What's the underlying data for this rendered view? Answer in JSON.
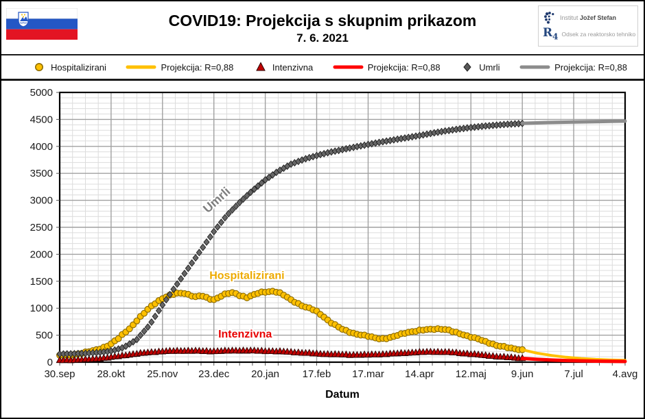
{
  "header": {
    "title": "COVID19: Projekcija s skupnim prikazom",
    "date": "7. 6. 2021",
    "institute_light": "Institut",
    "institute_bold": "Jožef Stefan",
    "r_logo": "R",
    "r_logo_sub": "4",
    "department": "Odsek za reaktorsko tehniko"
  },
  "legend": {
    "items": [
      {
        "swatch": "circle",
        "color": "#FFC000",
        "edge": "#8F6E00",
        "label": "Hospitalizirani"
      },
      {
        "swatch": "line",
        "color": "#FFC000",
        "edge": "#FFC000",
        "label": "Projekcija: R=0,88"
      },
      {
        "swatch": "triangle",
        "color": "#C00000",
        "edge": "#2b0000",
        "label": "Intenzivna"
      },
      {
        "swatch": "line",
        "color": "#FF0000",
        "edge": "#FF0000",
        "label": "Projekcija: R=0,88"
      },
      {
        "swatch": "diamond",
        "color": "#595959",
        "edge": "#1f1f1f",
        "label": "Umrli"
      },
      {
        "swatch": "line",
        "color": "#8C8C8C",
        "edge": "#8C8C8C",
        "label": "Projekcija: R=0,88"
      }
    ]
  },
  "chart_data": {
    "type": "line",
    "title": "COVID19: Projekcija s skupnim prikazom",
    "subtitle": "7. 6. 2021",
    "xlabel": "Datum",
    "ylabel": "",
    "ylim": [
      0,
      5000
    ],
    "y_major": 500,
    "y_minor": 100,
    "x_total_days": 308,
    "x_minor_days": 7,
    "x_major_days": 28,
    "grid": true,
    "legend_position": "top",
    "x_ticks": [
      {
        "label": "30.sep",
        "day": 0
      },
      {
        "label": "28.okt",
        "day": 28
      },
      {
        "label": "25.nov",
        "day": 56
      },
      {
        "label": "23.dec",
        "day": 84
      },
      {
        "label": "20.jan",
        "day": 112
      },
      {
        "label": "17.feb",
        "day": 140
      },
      {
        "label": "17.mar",
        "day": 168
      },
      {
        "label": "14.apr",
        "day": 196
      },
      {
        "label": "12.maj",
        "day": 224
      },
      {
        "label": "9.jun",
        "day": 252
      },
      {
        "label": "7.jul",
        "day": 280
      },
      {
        "label": "4.avg",
        "day": 308
      }
    ],
    "series": [
      {
        "name": "Hospitalizirani",
        "style": "markers",
        "marker": "circle",
        "color": "#FFC000",
        "edge": "#8F6E00",
        "jitter": 12,
        "points": [
          [
            0,
            125
          ],
          [
            4,
            132
          ],
          [
            7,
            140
          ],
          [
            11,
            158
          ],
          [
            14,
            178
          ],
          [
            18,
            212
          ],
          [
            21,
            242
          ],
          [
            25,
            285
          ],
          [
            28,
            335
          ],
          [
            32,
            440
          ],
          [
            35,
            540
          ],
          [
            39,
            650
          ],
          [
            42,
            770
          ],
          [
            46,
            905
          ],
          [
            49,
            1015
          ],
          [
            53,
            1120
          ],
          [
            56,
            1180
          ],
          [
            60,
            1235
          ],
          [
            63,
            1270
          ],
          [
            67,
            1290
          ],
          [
            70,
            1255
          ],
          [
            74,
            1205
          ],
          [
            77,
            1235
          ],
          [
            81,
            1185
          ],
          [
            84,
            1160
          ],
          [
            88,
            1225
          ],
          [
            91,
            1270
          ],
          [
            95,
            1290
          ],
          [
            98,
            1240
          ],
          [
            102,
            1200
          ],
          [
            105,
            1235
          ],
          [
            109,
            1290
          ],
          [
            112,
            1305
          ],
          [
            116,
            1315
          ],
          [
            119,
            1295
          ],
          [
            123,
            1225
          ],
          [
            126,
            1155
          ],
          [
            130,
            1085
          ],
          [
            133,
            1030
          ],
          [
            137,
            988
          ],
          [
            140,
            940
          ],
          [
            144,
            840
          ],
          [
            147,
            750
          ],
          [
            151,
            668
          ],
          [
            154,
            608
          ],
          [
            158,
            560
          ],
          [
            161,
            528
          ],
          [
            165,
            498
          ],
          [
            168,
            478
          ],
          [
            172,
            450
          ],
          [
            175,
            436
          ],
          [
            179,
            446
          ],
          [
            182,
            472
          ],
          [
            186,
            520
          ],
          [
            189,
            552
          ],
          [
            193,
            572
          ],
          [
            196,
            586
          ],
          [
            200,
            602
          ],
          [
            204,
            616
          ],
          [
            207,
            620
          ],
          [
            211,
            600
          ],
          [
            214,
            566
          ],
          [
            218,
            530
          ],
          [
            221,
            500
          ],
          [
            224,
            468
          ],
          [
            228,
            428
          ],
          [
            231,
            388
          ],
          [
            235,
            348
          ],
          [
            238,
            314
          ],
          [
            242,
            284
          ],
          [
            245,
            260
          ],
          [
            249,
            242
          ],
          [
            252,
            230
          ]
        ]
      },
      {
        "name": "Projekcija: R=0,88",
        "style": "line",
        "color": "#FFC000",
        "width": 4,
        "points": [
          [
            252,
            230
          ],
          [
            260,
            168
          ],
          [
            268,
            124
          ],
          [
            276,
            92
          ],
          [
            284,
            68
          ],
          [
            292,
            52
          ],
          [
            300,
            42
          ],
          [
            308,
            35
          ]
        ]
      },
      {
        "name": "Intenzivna",
        "style": "markers",
        "marker": "triangle",
        "color": "#C00000",
        "edge": "#2b0000",
        "jitter": 6,
        "points": [
          [
            0,
            35
          ],
          [
            7,
            40
          ],
          [
            14,
            50
          ],
          [
            21,
            65
          ],
          [
            28,
            92
          ],
          [
            35,
            126
          ],
          [
            42,
            156
          ],
          [
            49,
            182
          ],
          [
            56,
            200
          ],
          [
            63,
            208
          ],
          [
            70,
            212
          ],
          [
            77,
            206
          ],
          [
            84,
            202
          ],
          [
            91,
            210
          ],
          [
            98,
            216
          ],
          [
            105,
            212
          ],
          [
            112,
            206
          ],
          [
            119,
            200
          ],
          [
            126,
            188
          ],
          [
            133,
            172
          ],
          [
            140,
            158
          ],
          [
            147,
            148
          ],
          [
            154,
            140
          ],
          [
            161,
            134
          ],
          [
            168,
            138
          ],
          [
            175,
            146
          ],
          [
            182,
            158
          ],
          [
            189,
            172
          ],
          [
            196,
            184
          ],
          [
            203,
            192
          ],
          [
            210,
            188
          ],
          [
            217,
            172
          ],
          [
            224,
            152
          ],
          [
            231,
            128
          ],
          [
            238,
            106
          ],
          [
            245,
            88
          ],
          [
            252,
            72
          ]
        ]
      },
      {
        "name": "Projekcija: R=0,88",
        "style": "line",
        "color": "#FF0000",
        "width": 5,
        "points": [
          [
            252,
            70
          ],
          [
            260,
            52
          ],
          [
            268,
            39
          ],
          [
            276,
            30
          ],
          [
            284,
            24
          ],
          [
            292,
            19
          ],
          [
            300,
            16
          ],
          [
            308,
            13
          ]
        ]
      },
      {
        "name": "Umrli",
        "style": "markers",
        "marker": "diamond",
        "color": "#666666",
        "edge": "#1f1f1f",
        "jitter": 0,
        "points": [
          [
            0,
            150
          ],
          [
            7,
            156
          ],
          [
            14,
            164
          ],
          [
            21,
            178
          ],
          [
            28,
            205
          ],
          [
            35,
            275
          ],
          [
            42,
            420
          ],
          [
            49,
            690
          ],
          [
            56,
            1060
          ],
          [
            63,
            1400
          ],
          [
            70,
            1740
          ],
          [
            77,
            2080
          ],
          [
            84,
            2420
          ],
          [
            91,
            2720
          ],
          [
            98,
            2960
          ],
          [
            105,
            3180
          ],
          [
            112,
            3380
          ],
          [
            119,
            3540
          ],
          [
            126,
            3670
          ],
          [
            133,
            3760
          ],
          [
            140,
            3830
          ],
          [
            147,
            3890
          ],
          [
            154,
            3940
          ],
          [
            161,
            3990
          ],
          [
            168,
            4035
          ],
          [
            175,
            4080
          ],
          [
            182,
            4120
          ],
          [
            189,
            4160
          ],
          [
            196,
            4200
          ],
          [
            203,
            4245
          ],
          [
            210,
            4285
          ],
          [
            217,
            4320
          ],
          [
            224,
            4350
          ],
          [
            231,
            4375
          ],
          [
            238,
            4395
          ],
          [
            245,
            4412
          ],
          [
            252,
            4425
          ]
        ]
      },
      {
        "name": "Projekcija: R=0,88",
        "style": "line",
        "color": "#8C8C8C",
        "width": 5,
        "points": [
          [
            252,
            4428
          ],
          [
            266,
            4442
          ],
          [
            280,
            4452
          ],
          [
            294,
            4460
          ],
          [
            308,
            4468
          ]
        ]
      }
    ],
    "annotations": [
      {
        "text": "Umrli",
        "day": 87,
        "value": 2950,
        "rotate": -42,
        "color": "#7F7F7F",
        "size": 18
      },
      {
        "text": "Hospitalizirani",
        "day": 102,
        "value": 1545,
        "rotate": 0,
        "color": "#EDAA00",
        "size": 16
      },
      {
        "text": "Intenzivna",
        "day": 101,
        "value": 455,
        "rotate": 0,
        "color": "#E80000",
        "size": 16
      }
    ]
  }
}
